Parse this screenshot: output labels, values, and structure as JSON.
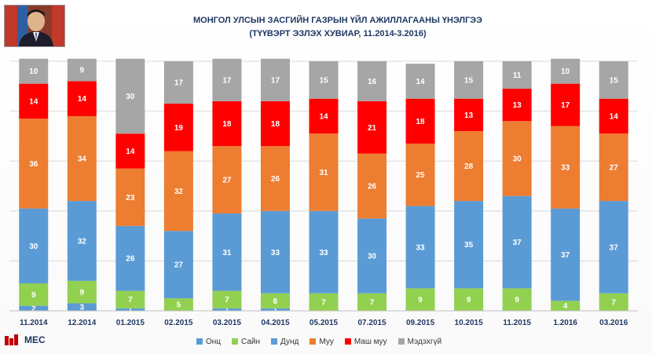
{
  "title": "МОНГОЛ УЛСЫН ЗАСГИЙН ГАЗРЫН ҮЙЛ АЖИЛЛАГААНЫ ҮНЭЛГЭЭ",
  "subtitle": "(ТҮҮВЭРТ ЭЗЛЭХ ХУВИАР, 11.2014-3.2016)",
  "logo_text": "MEC",
  "chart_data": {
    "type": "bar",
    "stacked": true,
    "categories": [
      "11.2014",
      "12.2014",
      "01.2015",
      "02.2015",
      "03.2015",
      "04.2015",
      "05.2015",
      "07.2015",
      "09.2015",
      "10.2015",
      "11.2015",
      "1.2016",
      "03.2016"
    ],
    "series": [
      {
        "name": "Онц",
        "color": "#5b9bd5",
        "values": [
          2,
          3,
          1,
          0,
          1,
          1,
          0,
          0,
          0,
          0,
          0,
          0,
          0
        ]
      },
      {
        "name": "Сайн",
        "color": "#92d050",
        "values": [
          9,
          9,
          7,
          5,
          7,
          6,
          7,
          7,
          9,
          9,
          9,
          4,
          7
        ]
      },
      {
        "name": "Дунд",
        "color": "#5b9bd5",
        "values": [
          30,
          32,
          26,
          27,
          31,
          33,
          33,
          30,
          33,
          35,
          37,
          37,
          37
        ]
      },
      {
        "name": "Муу",
        "color": "#ed7d31",
        "values": [
          36,
          34,
          23,
          32,
          27,
          26,
          31,
          26,
          25,
          28,
          30,
          33,
          27
        ]
      },
      {
        "name": "Маш муу",
        "color": "#ff0000",
        "values": [
          14,
          14,
          14,
          19,
          18,
          18,
          14,
          21,
          18,
          13,
          13,
          17,
          14
        ]
      },
      {
        "name": "Мэдэхгүй",
        "color": "#a6a6a6",
        "values": [
          10,
          9,
          30,
          17,
          17,
          17,
          15,
          16,
          14,
          15,
          11,
          10,
          15
        ]
      }
    ],
    "labels": [
      [
        "2",
        "9",
        "30",
        "36",
        "14",
        "10"
      ],
      [
        "3",
        "9",
        "32",
        "34",
        "14",
        "9"
      ],
      [
        "1",
        "7",
        "26",
        "23",
        "14",
        "30"
      ],
      [
        "",
        "5",
        "27",
        "32",
        "19",
        "17"
      ],
      [
        "1",
        "7",
        "31",
        "27",
        "18",
        "17"
      ],
      [
        "1",
        "6",
        "33",
        "26",
        "18",
        "17"
      ],
      [
        "",
        "7",
        "33",
        "31",
        "14",
        "15"
      ],
      [
        "",
        "7",
        "30",
        "26",
        "21",
        "16"
      ],
      [
        "",
        "9",
        "33",
        "25",
        "18",
        "14"
      ],
      [
        "",
        "9",
        "35",
        "28",
        "13",
        "15"
      ],
      [
        "",
        "9",
        "37",
        "30",
        "13",
        "11"
      ],
      [
        "",
        "4",
        "37",
        "33",
        "17",
        "10"
      ],
      [
        "",
        "7",
        "37",
        "27",
        "14",
        "15"
      ]
    ],
    "ylim": [
      0,
      100
    ],
    "grid": true,
    "legend": "bottom"
  }
}
